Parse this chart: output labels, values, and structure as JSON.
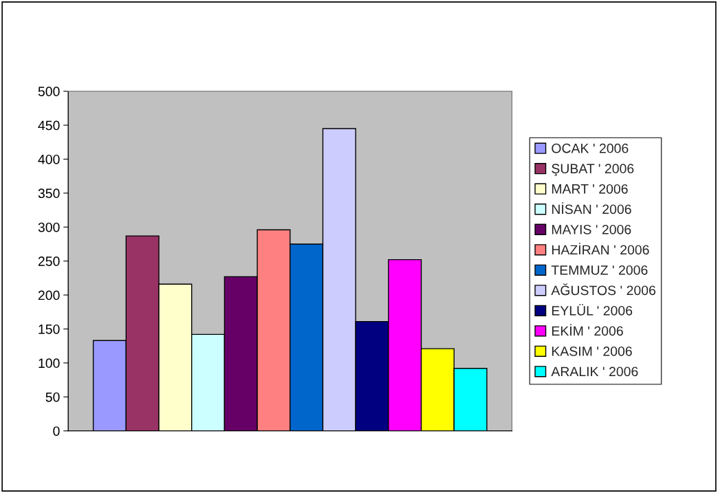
{
  "chart_data": {
    "type": "bar",
    "categories": [
      null
    ],
    "series": [
      {
        "name": "OCAK ' 2006",
        "color": "#9999ff",
        "values": [
          133
        ]
      },
      {
        "name": "ŞUBAT ' 2006",
        "color": "#993366",
        "values": [
          287
        ]
      },
      {
        "name": "MART ' 2006",
        "color": "#ffffcc",
        "values": [
          216
        ]
      },
      {
        "name": "NİSAN ' 2006",
        "color": "#ccffff",
        "values": [
          142
        ]
      },
      {
        "name": "MAYIS ' 2006",
        "color": "#660066",
        "values": [
          227
        ]
      },
      {
        "name": "HAZİRAN ' 2006",
        "color": "#ff8080",
        "values": [
          296
        ]
      },
      {
        "name": "TEMMUZ ' 2006",
        "color": "#0066cc",
        "values": [
          275
        ]
      },
      {
        "name": "AĞUSTOS ' 2006",
        "color": "#ccccff",
        "values": [
          445
        ]
      },
      {
        "name": "EYLÜL ' 2006",
        "color": "#000080",
        "values": [
          161
        ]
      },
      {
        "name": "EKİM ' 2006",
        "color": "#ff00ff",
        "values": [
          252
        ]
      },
      {
        "name": "KASIM ' 2006",
        "color": "#ffff00",
        "values": [
          121
        ]
      },
      {
        "name": "ARALIK ' 2006",
        "color": "#00ffff",
        "values": [
          92
        ]
      }
    ],
    "ylim": [
      0,
      500
    ],
    "yticks": [
      0,
      50,
      100,
      150,
      200,
      250,
      300,
      350,
      400,
      450,
      500
    ],
    "grid": false,
    "legend": "right"
  }
}
